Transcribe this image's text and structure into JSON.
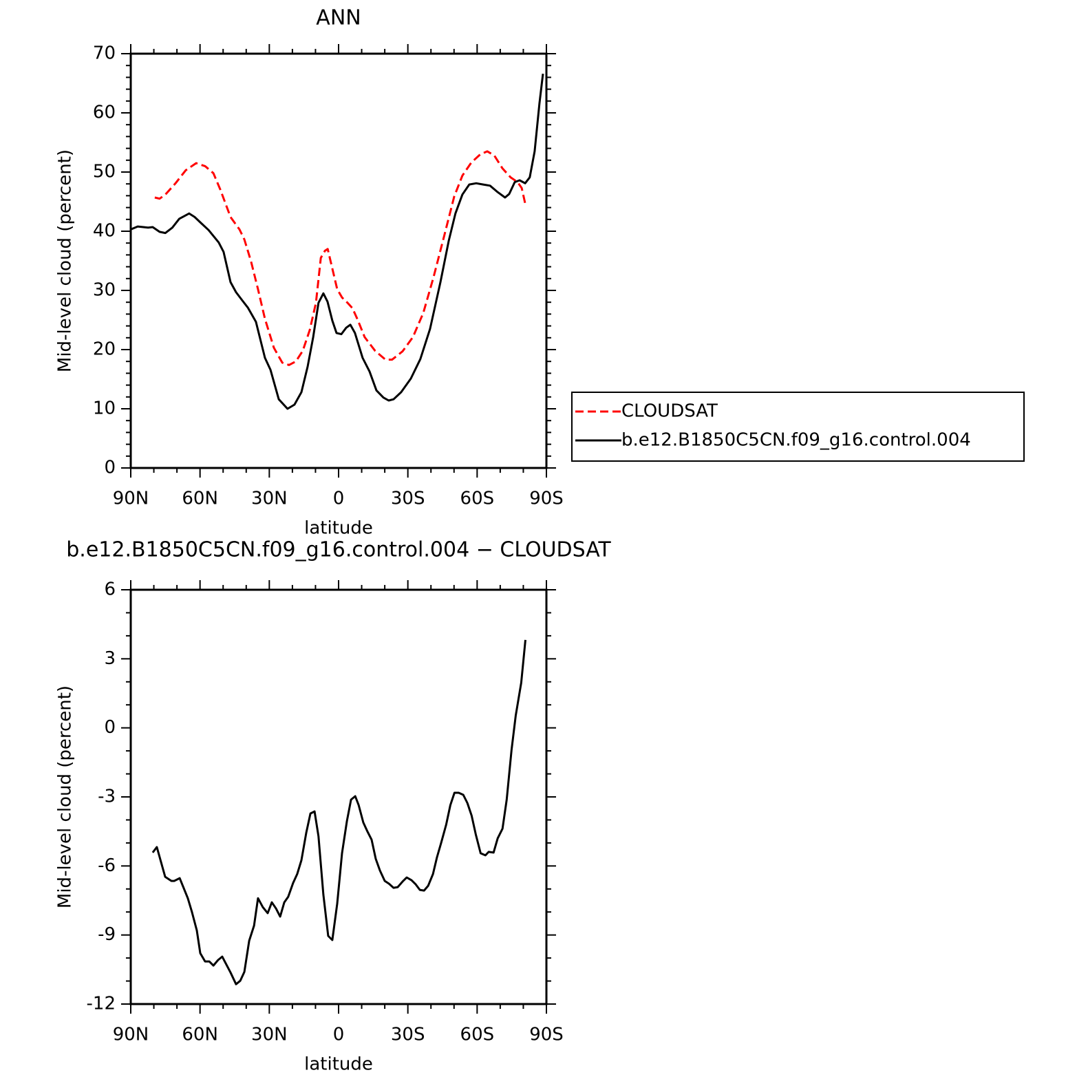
{
  "chart_data": [
    {
      "type": "line",
      "title": "ANN",
      "x_label": "latitude",
      "y_label": "Mid-level cloud (percent)",
      "xlim": [
        90,
        -90
      ],
      "xticks": [
        {
          "value": 90,
          "label": "90N"
        },
        {
          "value": 60,
          "label": "60N"
        },
        {
          "value": 30,
          "label": "30N"
        },
        0,
        {
          "value": -30,
          "label": "30S"
        },
        {
          "value": -60,
          "label": "60S"
        },
        {
          "value": -90,
          "label": "90S"
        }
      ],
      "ylim": [
        0,
        70
      ],
      "yticks": [
        0,
        10,
        20,
        30,
        40,
        50,
        60,
        70
      ],
      "legend": "right",
      "series": [
        {
          "name": "CLOUDSAT",
          "color": "#ff0000",
          "line_style": "dashed",
          "x": [
            79.6,
            77.5,
            75,
            70.6,
            66.2,
            61.7,
            57.8,
            54.2,
            51.3,
            46.8,
            42.9,
            40.8,
            37.9,
            34.9,
            31.9,
            28.0,
            24.4,
            21.5,
            18.5,
            15.5,
            12.5,
            9.8,
            7.7,
            5.9,
            4.7,
            2.7,
            0.6,
            -1.5,
            -3.9,
            -6.0,
            -8.3,
            -11.3,
            -15.8,
            -20.3,
            -23.2,
            -27.7,
            -32.2,
            -36.7,
            -41.1,
            -45.6,
            -50.1,
            -53.6,
            -57.5,
            -61.4,
            -64.4,
            -67.4,
            -71.0,
            -74.5,
            -77.5,
            -79.3,
            -81.1
          ],
          "values": [
            45.7,
            45.5,
            46.2,
            48.1,
            50.3,
            51.5,
            51.0,
            49.8,
            47.1,
            42.4,
            40.3,
            38.6,
            34.9,
            30.2,
            25.2,
            20.3,
            17.8,
            17.4,
            18.0,
            19.8,
            23.3,
            27.9,
            35.5,
            36.7,
            37.0,
            33.7,
            30.2,
            28.8,
            27.9,
            27.0,
            25.0,
            22.1,
            19.8,
            18.3,
            18.3,
            19.7,
            22.1,
            26.2,
            32.2,
            39.0,
            45.9,
            49.4,
            51.6,
            53.0,
            53.5,
            52.8,
            50.6,
            49.1,
            48.3,
            47.3,
            44.2
          ]
        },
        {
          "name": "b.e12.B1850C5CN.f09_g16.control.004",
          "color": "#000000",
          "line_style": "solid",
          "x": [
            90,
            87,
            82.5,
            80.5,
            77.5,
            75,
            72,
            69,
            64.7,
            62.3,
            59.6,
            56.3,
            51.9,
            49.8,
            46.8,
            44.4,
            41.7,
            39.3,
            35.8,
            31.9,
            29.5,
            25.9,
            22.1,
            19.1,
            16.1,
            13.4,
            11.0,
            8.7,
            6.6,
            4.8,
            2.7,
            0.9,
            -1.2,
            -3.3,
            -5.1,
            -7.1,
            -10.4,
            -13.4,
            -16.4,
            -19.4,
            -21.7,
            -23.8,
            -27.1,
            -31.3,
            -35.4,
            -39.6,
            -44.1,
            -47.7,
            -50.6,
            -53.6,
            -56.6,
            -59.6,
            -62.6,
            -65.6,
            -68.6,
            -72.1,
            -73.9,
            -76.3,
            -78.4,
            -80.8,
            -82.8,
            -84.9,
            -87.0,
            -88.5
          ],
          "values": [
            40.3,
            40.8,
            40.6,
            40.7,
            39.9,
            39.7,
            40.6,
            42.1,
            43.0,
            42.4,
            41.4,
            40.2,
            38.1,
            36.5,
            31.4,
            29.7,
            28.3,
            27.1,
            24.7,
            18.6,
            16.6,
            11.6,
            10.0,
            10.7,
            12.8,
            17.1,
            22.1,
            27.9,
            29.5,
            28.1,
            24.9,
            22.8,
            22.6,
            23.7,
            24.2,
            22.8,
            18.6,
            16.3,
            13.1,
            11.9,
            11.4,
            11.6,
            12.8,
            15.1,
            18.4,
            23.5,
            31.4,
            38.4,
            43.0,
            46.2,
            47.9,
            48.1,
            47.9,
            47.7,
            46.7,
            45.7,
            46.3,
            48.3,
            48.6,
            48.1,
            49.1,
            53.5,
            61.6,
            66.6
          ]
        }
      ]
    },
    {
      "type": "line",
      "title": "b.e12.B1850C5CN.f09_g16.control.004 − CLOUDSAT",
      "x_label": "latitude",
      "y_label": "Mid-level cloud (percent)",
      "xlim": [
        90,
        -90
      ],
      "xticks": [
        {
          "value": 90,
          "label": "90N"
        },
        {
          "value": 60,
          "label": "60N"
        },
        {
          "value": 30,
          "label": "30N"
        },
        0,
        {
          "value": -30,
          "label": "30S"
        },
        {
          "value": -60,
          "label": "60S"
        },
        {
          "value": -90,
          "label": "90S"
        }
      ],
      "ylim": [
        -12,
        6
      ],
      "yticks": [
        -12,
        -9,
        -6,
        -3,
        0,
        3,
        6
      ],
      "series": [
        {
          "color": "#000000",
          "line_style": "solid",
          "x": [
            80.5,
            78.7,
            75.1,
            72.4,
            71.2,
            68.8,
            65.3,
            63.5,
            61.4,
            59.9,
            57.8,
            56.0,
            54.2,
            52.2,
            50.4,
            46.8,
            44.4,
            42.6,
            40.8,
            38.7,
            36.6,
            34.9,
            32.8,
            30.7,
            28.9,
            27.1,
            25.3,
            23.5,
            21.8,
            19.7,
            17.9,
            16.1,
            14.0,
            12.2,
            10.4,
            8.7,
            6.6,
            4.5,
            2.7,
            0.6,
            -1.5,
            -3.6,
            -5.4,
            -7.2,
            -8.7,
            -10.7,
            -12.5,
            -14.3,
            -16.1,
            -17.9,
            -20.0,
            -21.8,
            -23.8,
            -25.6,
            -27.7,
            -29.5,
            -31.6,
            -33.4,
            -35.2,
            -37.0,
            -38.8,
            -40.9,
            -42.6,
            -44.4,
            -46.6,
            -48.4,
            -50.2,
            -52.0,
            -54.0,
            -55.8,
            -57.6,
            -59.4,
            -61.5,
            -63.6,
            -65.0,
            -67.1,
            -68.9,
            -71.0,
            -72.8,
            -74.9,
            -76.7,
            -79.1,
            -80.9
          ],
          "values": [
            -5.42,
            -5.18,
            -6.47,
            -6.65,
            -6.65,
            -6.53,
            -7.4,
            -8.0,
            -8.8,
            -9.79,
            -10.15,
            -10.15,
            -10.33,
            -10.09,
            -9.94,
            -10.63,
            -11.14,
            -10.99,
            -10.6,
            -9.25,
            -8.59,
            -7.4,
            -7.79,
            -8.05,
            -7.58,
            -7.85,
            -8.2,
            -7.58,
            -7.34,
            -6.74,
            -6.35,
            -5.75,
            -4.56,
            -3.72,
            -3.63,
            -4.71,
            -7.25,
            -9.04,
            -9.22,
            -7.64,
            -5.45,
            -4.05,
            -3.12,
            -2.97,
            -3.36,
            -4.11,
            -4.5,
            -4.86,
            -5.69,
            -6.2,
            -6.65,
            -6.77,
            -6.95,
            -6.92,
            -6.68,
            -6.5,
            -6.62,
            -6.8,
            -7.04,
            -7.07,
            -6.86,
            -6.35,
            -5.63,
            -5.0,
            -4.2,
            -3.36,
            -2.82,
            -2.82,
            -2.91,
            -3.27,
            -3.81,
            -4.62,
            -5.45,
            -5.54,
            -5.39,
            -5.42,
            -4.8,
            -4.38,
            -3.12,
            -0.97,
            0.53,
            1.96,
            3.82
          ]
        }
      ]
    }
  ]
}
